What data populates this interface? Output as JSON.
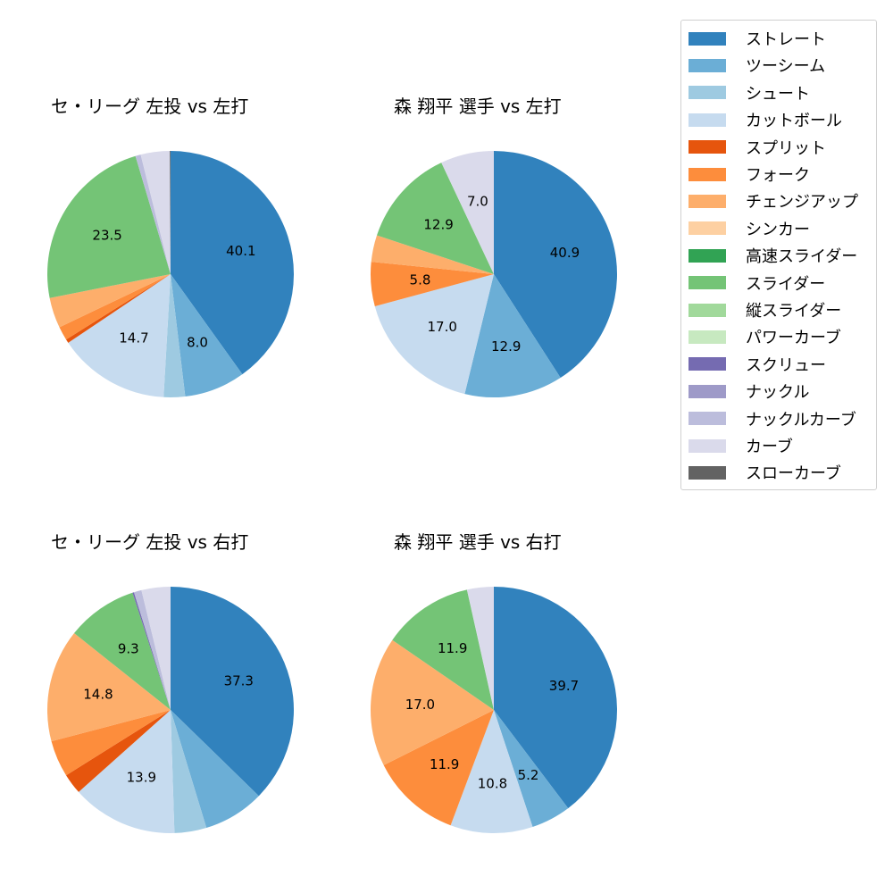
{
  "legend": {
    "items": [
      {
        "label": "ストレート",
        "color": "#3182bd"
      },
      {
        "label": "ツーシーム",
        "color": "#6baed6"
      },
      {
        "label": "シュート",
        "color": "#9ecae1"
      },
      {
        "label": "カットボール",
        "color": "#c6dbef"
      },
      {
        "label": "スプリット",
        "color": "#e6550d"
      },
      {
        "label": "フォーク",
        "color": "#fd8d3c"
      },
      {
        "label": "チェンジアップ",
        "color": "#fdae6b"
      },
      {
        "label": "シンカー",
        "color": "#fdd0a2"
      },
      {
        "label": "高速スライダー",
        "color": "#31a354"
      },
      {
        "label": "スライダー",
        "color": "#74c476"
      },
      {
        "label": "縦スライダー",
        "color": "#a1d99b"
      },
      {
        "label": "パワーカーブ",
        "color": "#c7e9c0"
      },
      {
        "label": "スクリュー",
        "color": "#756bb1"
      },
      {
        "label": "ナックル",
        "color": "#9e9ac8"
      },
      {
        "label": "ナックルカーブ",
        "color": "#bcbddc"
      },
      {
        "label": "カーブ",
        "color": "#dadaeb"
      },
      {
        "label": "スローカーブ",
        "color": "#636363"
      }
    ]
  },
  "chart_data": [
    {
      "type": "pie",
      "title": "セ・リーグ 左投 vs 左打",
      "categories": [
        "ストレート",
        "ツーシーム",
        "シュート",
        "カットボール",
        "スプリット",
        "フォーク",
        "チェンジアップ",
        "スライダー",
        "ナックルカーブ",
        "カーブ",
        "スローカーブ"
      ],
      "values": [
        40.1,
        8.0,
        2.8,
        14.7,
        0.5,
        1.8,
        4.0,
        23.5,
        0.7,
        3.8,
        0.1
      ],
      "labels_shown": [
        "40.1",
        "8.0",
        "",
        "14.7",
        "",
        "",
        "",
        "23.5",
        "",
        "",
        ""
      ]
    },
    {
      "type": "pie",
      "title": "森 翔平 選手 vs 左打",
      "categories": [
        "ストレート",
        "ツーシーム",
        "カットボール",
        "フォーク",
        "チェンジアップ",
        "スライダー",
        "カーブ"
      ],
      "values": [
        40.9,
        12.9,
        17.0,
        5.8,
        3.5,
        12.9,
        7.0
      ],
      "labels_shown": [
        "40.9",
        "12.9",
        "17.0",
        "5.8",
        "",
        "12.9",
        "7.0"
      ]
    },
    {
      "type": "pie",
      "title": "セ・リーグ 左投 vs 右打",
      "categories": [
        "ストレート",
        "ツーシーム",
        "シュート",
        "カットボール",
        "スプリット",
        "フォーク",
        "チェンジアップ",
        "スライダー",
        "スクリュー",
        "ナックルカーブ",
        "カーブ"
      ],
      "values": [
        37.3,
        8.0,
        4.2,
        13.9,
        2.7,
        4.8,
        14.8,
        9.3,
        0.2,
        1.0,
        3.8
      ],
      "labels_shown": [
        "37.3",
        "",
        "",
        "13.9",
        "",
        "",
        "14.8",
        "9.3",
        "",
        "",
        ""
      ]
    },
    {
      "type": "pie",
      "title": "森 翔平 選手 vs 右打",
      "categories": [
        "ストレート",
        "ツーシーム",
        "カットボール",
        "フォーク",
        "チェンジアップ",
        "スライダー",
        "カーブ"
      ],
      "values": [
        39.7,
        5.2,
        10.8,
        11.9,
        17.0,
        11.9,
        3.5
      ],
      "labels_shown": [
        "39.7",
        "5.2",
        "10.8",
        "11.9",
        "17.0",
        "11.9",
        ""
      ]
    }
  ],
  "panels": [
    {
      "title": "セ・リーグ 左投 vs 左打"
    },
    {
      "title": "森 翔平 選手 vs 左打"
    },
    {
      "title": "セ・リーグ 左投 vs 右打"
    },
    {
      "title": "森 翔平 選手 vs 右打"
    }
  ]
}
